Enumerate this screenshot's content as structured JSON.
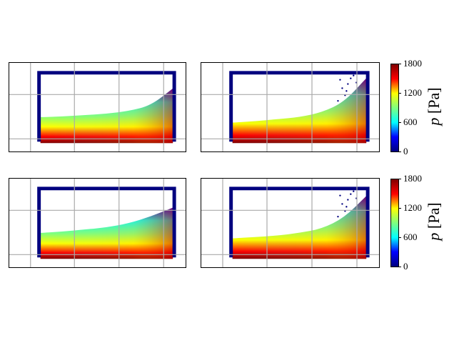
{
  "chart_data": {
    "type": "heatmap",
    "panels": [
      {
        "row": 1,
        "col": 1,
        "free_surface_depth": [
          0.38,
          0.39,
          0.41,
          0.43,
          0.47,
          0.55,
          0.8
        ],
        "splash": false
      },
      {
        "row": 1,
        "col": 2,
        "free_surface_depth": [
          0.3,
          0.32,
          0.35,
          0.38,
          0.45,
          0.6,
          0.95
        ],
        "splash": true
      },
      {
        "row": 2,
        "col": 1,
        "free_surface_depth": [
          0.38,
          0.4,
          0.43,
          0.46,
          0.52,
          0.62,
          0.75
        ],
        "splash": false
      },
      {
        "row": 2,
        "col": 2,
        "free_surface_depth": [
          0.3,
          0.32,
          0.34,
          0.38,
          0.44,
          0.6,
          0.92
        ],
        "splash": true
      }
    ],
    "colorbars": [
      {
        "label_var": "p",
        "label_unit": " [Pa]",
        "ticks": [
          "1800",
          "1200",
          "600",
          "0"
        ],
        "range": [
          0,
          1800
        ]
      },
      {
        "label_var": "p",
        "label_unit": " [Pa]",
        "ticks": [
          "1800",
          "1200",
          "600",
          "0"
        ],
        "range": [
          0,
          1800
        ]
      }
    ],
    "colormap": [
      "#00007f",
      "#0000ff",
      "#00ffff",
      "#7fff7f",
      "#ffff00",
      "#ff0000",
      "#7f0000"
    ]
  }
}
